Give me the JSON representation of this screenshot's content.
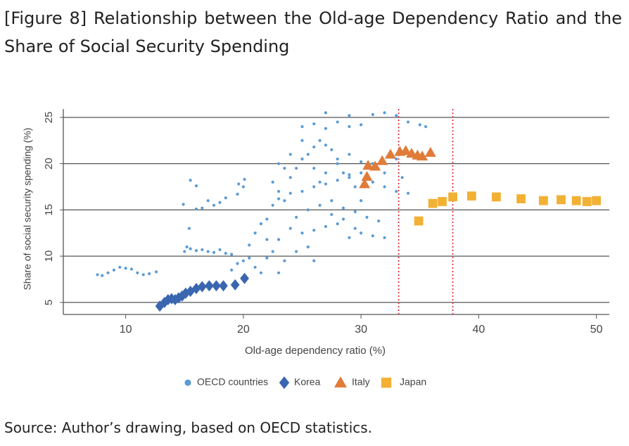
{
  "chart_data": {
    "type": "scatter",
    "title": "[Figure 8] Relationship between the Old-age Dependency Ratio and the Share of Social Security Spending",
    "xlabel": "Old-age dependency ratio (%)",
    "ylabel": "Share of social security spending (%)",
    "source": "Source: Author’s drawing, based on OECD statistics.",
    "xlim": [
      4.7,
      51.1
    ],
    "ylim": [
      3.7,
      25.9
    ],
    "xticks": [
      10,
      20,
      30,
      40,
      50
    ],
    "yticks": [
      5,
      10,
      15,
      20,
      25
    ],
    "grid": true,
    "legend": "bottom",
    "vlines": [
      33.2,
      37.8
    ],
    "vline_color": "#d9272e",
    "series": [
      {
        "name": "OECD countries",
        "color": "#5b9bd5",
        "marker": "circle",
        "x": [
          7.6,
          8,
          8.5,
          9,
          9.5,
          10,
          10.5,
          11,
          11.5,
          12,
          12.6,
          15,
          15.5,
          16,
          16.5,
          17,
          17.5,
          18,
          18.5,
          19,
          15.2,
          15.4,
          14.9,
          15.5,
          16,
          16.5,
          17,
          17.5,
          18,
          18.5,
          19.5,
          19.6,
          20,
          20.1,
          16,
          19,
          19.5,
          20,
          20.5,
          21,
          21.5,
          22,
          22.5,
          23,
          23.5,
          20.5,
          21,
          22,
          21.5,
          22,
          22.5,
          23,
          23.5,
          24,
          24.5,
          25,
          25.5,
          26,
          26.5,
          27,
          27.5,
          28,
          28.5,
          29,
          29.5,
          30,
          24,
          25,
          26,
          27,
          28,
          29,
          30,
          31,
          32,
          23,
          24,
          25,
          26,
          27,
          28,
          29,
          30,
          31,
          32,
          33,
          25.5,
          26.5,
          27.5,
          28.5,
          29.5,
          24.5,
          25,
          26,
          27,
          28,
          29,
          30,
          31,
          32,
          33,
          34,
          35,
          35.5,
          26,
          27,
          28,
          29,
          30,
          24,
          25,
          23,
          26.5,
          27.5,
          28.5,
          30.5,
          31.5,
          29.5,
          24.5,
          25.5,
          26,
          23,
          33.5,
          34,
          33,
          32,
          31,
          22.5,
          23.5,
          27,
          29
        ],
        "values": [
          8.0,
          7.9,
          8.2,
          8.5,
          8.8,
          8.7,
          8.6,
          8.2,
          8.0,
          8.1,
          8.3,
          10.5,
          10.8,
          10.6,
          10.7,
          10.5,
          10.4,
          10.7,
          10.3,
          10.2,
          11,
          13,
          15.6,
          18.2,
          17.6,
          15.2,
          16,
          15.5,
          15.8,
          16.3,
          16.7,
          17.8,
          17.5,
          18.3,
          15.1,
          8.5,
          9.2,
          9.5,
          9.8,
          8.8,
          8.2,
          9.8,
          10.5,
          8.2,
          9.5,
          11.2,
          12.5,
          11.8,
          13.5,
          14,
          15.5,
          17,
          16,
          18.5,
          19.5,
          20.5,
          21,
          21.8,
          22.5,
          22,
          21.5,
          20,
          19,
          18.5,
          17.5,
          16,
          13,
          12.5,
          12.8,
          13.2,
          13.5,
          12,
          12.5,
          12.2,
          12,
          16.2,
          16.8,
          17,
          17.5,
          17.8,
          18.2,
          18.8,
          19,
          18,
          17.5,
          17,
          15,
          15.5,
          16,
          15.2,
          14.8,
          14.2,
          24,
          24.3,
          23.8,
          24.5,
          24,
          24.2,
          25.3,
          25.5,
          25.2,
          24.5,
          24.2,
          24,
          19.5,
          19,
          20.5,
          21,
          20.2,
          21,
          22.5,
          20,
          18,
          14.5,
          14,
          14.2,
          13.8,
          13,
          10.5,
          11,
          9.5,
          11.8,
          18.5,
          16.8,
          20.5,
          19,
          20,
          18,
          19.5,
          25.5,
          25.2
        ]
      },
      {
        "name": "Korea",
        "color": "#3a66b0",
        "marker": "diamond",
        "x": [
          12.9,
          13.3,
          13.6,
          13.9,
          14.2,
          14.5,
          14.8,
          15.1,
          15.5,
          16,
          16.5,
          17.1,
          17.7,
          18.3,
          19.3,
          20.1
        ],
        "values": [
          4.6,
          5.0,
          5.3,
          5.4,
          5.3,
          5.5,
          5.7,
          6.0,
          6.2,
          6.5,
          6.7,
          6.8,
          6.8,
          6.8,
          6.9,
          7.6
        ]
      },
      {
        "name": "Italy",
        "color": "#e07b39",
        "marker": "triangle",
        "x": [
          30.3,
          30.5,
          30.6,
          31.2,
          31.8,
          32.5,
          33.3,
          33.8,
          34.3,
          34.8,
          35.2,
          35.9
        ],
        "values": [
          17.8,
          18.6,
          19.8,
          19.7,
          20.3,
          21,
          21.3,
          21.4,
          21.1,
          20.9,
          20.8,
          21.2
        ]
      },
      {
        "name": "Japan",
        "color": "#f2b134",
        "marker": "square",
        "x": [
          34.9,
          36.1,
          36.9,
          37.8,
          39.4,
          41.5,
          43.6,
          45.5,
          47,
          48.3,
          49.2,
          50
        ],
        "values": [
          13.8,
          15.7,
          15.9,
          16.4,
          16.5,
          16.4,
          16.2,
          16.0,
          16.1,
          16.0,
          15.9,
          16.0
        ]
      }
    ]
  }
}
